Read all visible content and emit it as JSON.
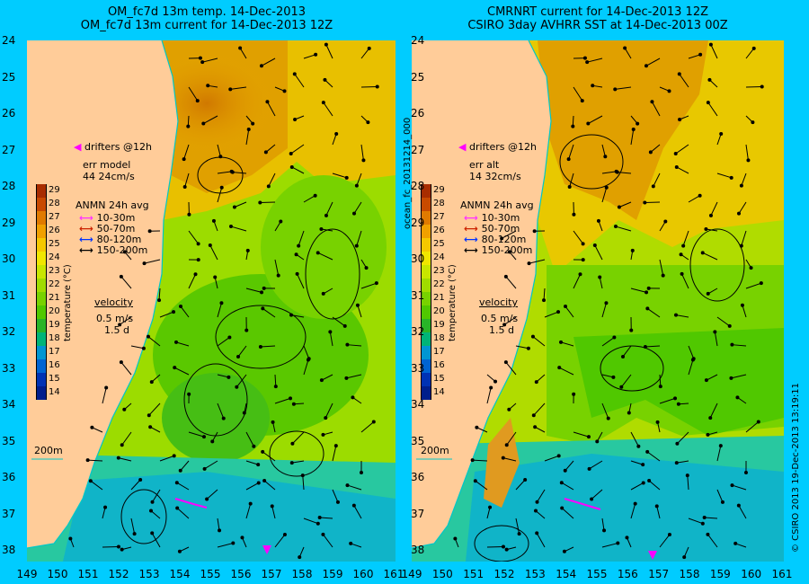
{
  "titles": {
    "left": {
      "line1": "OM_fc7d 13m temp. 14-Dec-2013",
      "line2": "OM_fc7d 13m current for 14-Dec-2013 12Z"
    },
    "right": {
      "line1": "CMRNRT current for 14-Dec-2013 12Z",
      "line2": "CSIRO 3day AVHRR SST at 14-Dec-2013 00Z"
    }
  },
  "axes": {
    "lat_labels": [
      "24",
      "25",
      "26",
      "27",
      "28",
      "29",
      "30",
      "31",
      "32",
      "33",
      "34",
      "35",
      "36",
      "37",
      "38"
    ],
    "lon_labels": [
      "149",
      "150",
      "151",
      "152",
      "153",
      "154",
      "155",
      "156",
      "157",
      "158",
      "159",
      "160",
      "161"
    ]
  },
  "panels": {
    "left": {
      "drifters": "drifters @12h",
      "err_line1": "err model",
      "err_line2": "44 24cm/s",
      "depth_contour": "200m"
    },
    "right": {
      "drifters": "drifters @12h",
      "err_line1": "err alt",
      "err_line2": "14 32cm/s",
      "depth_contour": "200m"
    }
  },
  "legend": {
    "title": "ANMN 24h avg",
    "items": [
      {
        "label": "10-30m",
        "color": "#ff33ff"
      },
      {
        "label": "50-70m",
        "color": "#cc2200"
      },
      {
        "label": "80-120m",
        "color": "#0033ff"
      },
      {
        "label": "150-200m",
        "color": "#000000"
      }
    ]
  },
  "velocity_key": {
    "label": "velocity",
    "speed": "0.5 m/s",
    "duration": "1.5 d"
  },
  "colorbar": {
    "ticks": [
      "29",
      "28",
      "27",
      "26",
      "25",
      "24",
      "23",
      "22",
      "21",
      "20",
      "19",
      "18",
      "17",
      "16",
      "15",
      "14"
    ],
    "label": "temperature (°C)",
    "colors": [
      "#a82d00",
      "#c84a00",
      "#e07a00",
      "#f0a000",
      "#f5c800",
      "#f0e600",
      "#c8e600",
      "#a0dc00",
      "#78d200",
      "#50c800",
      "#28b428",
      "#00b478",
      "#0096d2",
      "#0064d2",
      "#0032b4",
      "#001e8c"
    ]
  },
  "side_labels": {
    "product": "ocean_fc_20131214_000",
    "credit": "© CSIRO 2013   19-Dec-2013 13:19:11"
  },
  "colors": {
    "background": "#00ccff",
    "land": "#ffcc99",
    "coastline": "#00c8c8"
  }
}
